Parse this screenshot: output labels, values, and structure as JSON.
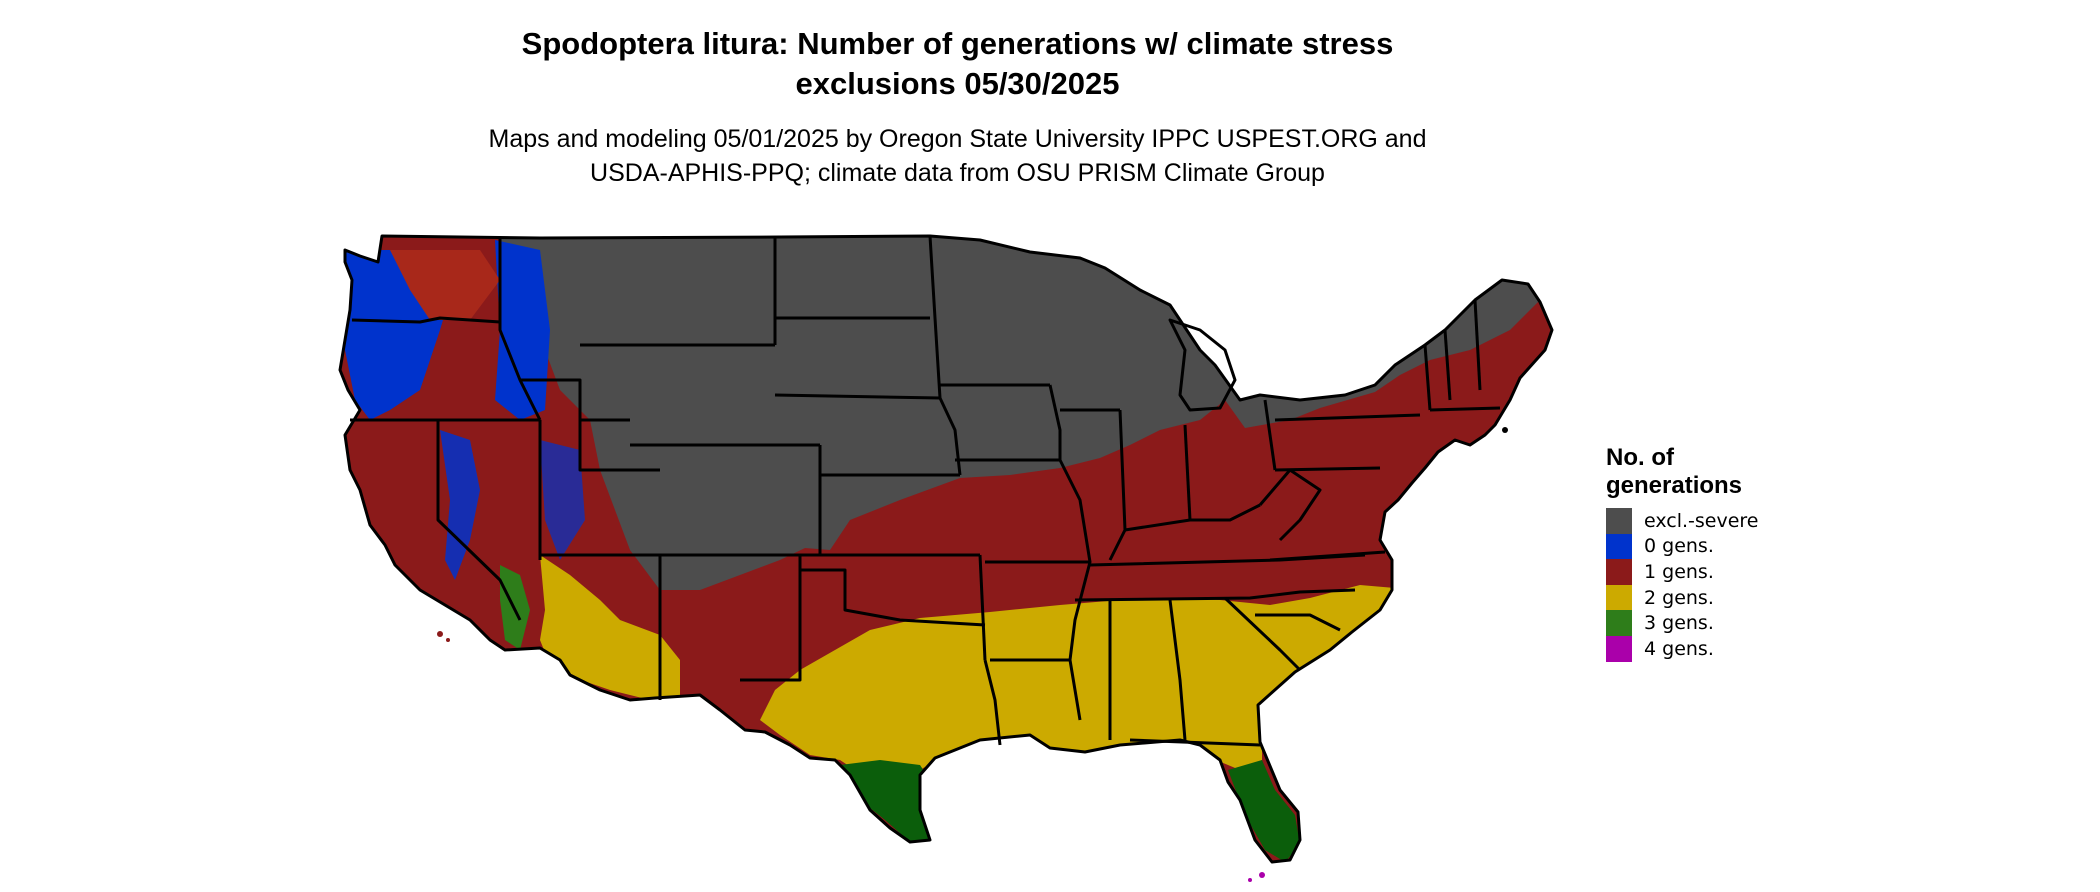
{
  "title": {
    "line1": "Spodoptera litura: Number of generations w/ climate stress",
    "line2": "exclusions 05/30/2025"
  },
  "subtitle": {
    "line1": "Maps and modeling 05/01/2025 by Oregon State University IPPC USPEST.ORG and",
    "line2": "USDA-APHIS-PPQ; climate data from OSU PRISM Climate Group"
  },
  "legend": {
    "title_line1": "No. of",
    "title_line2": "generations",
    "items": [
      {
        "label": "excl.-severe",
        "color": "#4d4d4d"
      },
      {
        "label": "0 gens.",
        "color": "#0033cc"
      },
      {
        "label": "1 gens.",
        "color": "#8b1a1a"
      },
      {
        "label": "2 gens.",
        "color": "#ccaa00"
      },
      {
        "label": "3 gens.",
        "color": "#2e7d1a"
      },
      {
        "label": "4 gens.",
        "color": "#aa00aa"
      }
    ]
  },
  "colors": {
    "excluded": "#4d4d4d",
    "gen0": "#0033cc",
    "gen1": "#8b1a1a",
    "gen2": "#ccaa00",
    "gen3": "#2e7d1a",
    "gen3_dark": "#0b5e0b",
    "gen4": "#aa00aa",
    "border": "#000000"
  }
}
